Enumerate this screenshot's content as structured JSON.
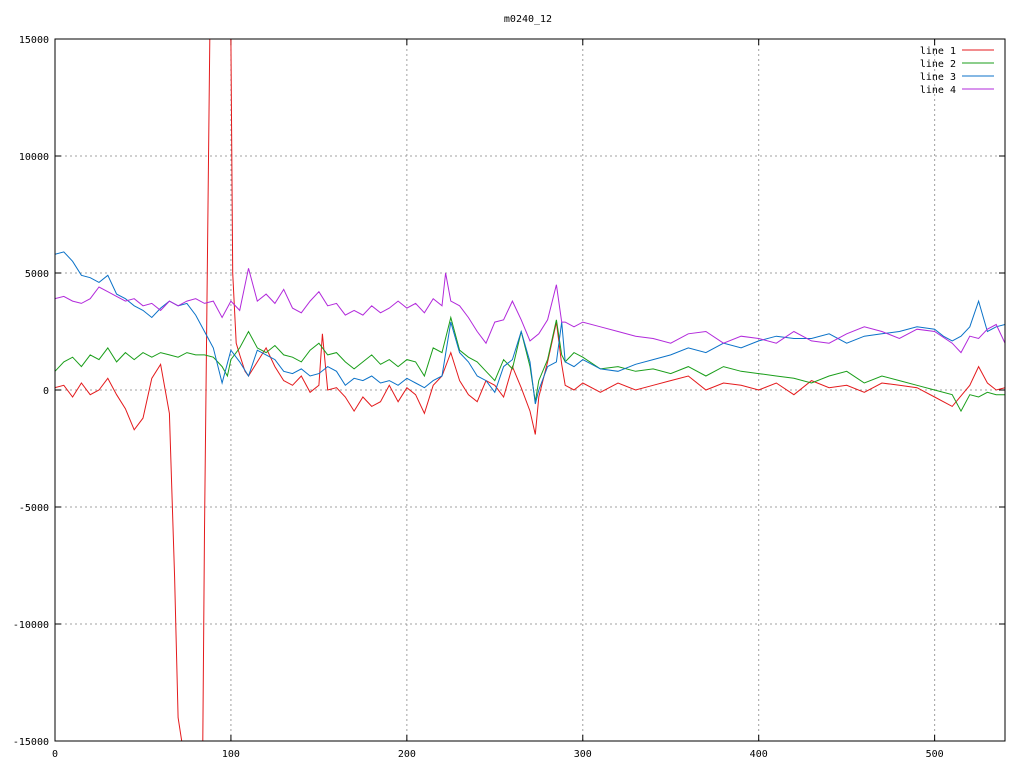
{
  "chart_data": {
    "type": "line",
    "title": "m0240_12",
    "xlabel": "",
    "ylabel": "",
    "xlim": [
      0,
      540
    ],
    "ylim": [
      -15000,
      15000
    ],
    "xticks": [
      0,
      100,
      200,
      300,
      400,
      500
    ],
    "yticks": [
      -15000,
      -10000,
      -5000,
      0,
      5000,
      10000,
      15000
    ],
    "xtick_labels": [
      "0",
      "100",
      "200",
      "300",
      "400",
      "500"
    ],
    "ytick_labels": [
      "-15000",
      "-10000",
      "-5000",
      "0",
      "5000",
      "10000",
      "15000"
    ],
    "grid": true,
    "legend_position": "top-right",
    "series": [
      {
        "name": "line 1",
        "color": "#e41a1c",
        "x": [
          0,
          5,
          10,
          15,
          20,
          25,
          30,
          35,
          40,
          45,
          50,
          55,
          60,
          65,
          68,
          70,
          72,
          75,
          80,
          84,
          85,
          88,
          92,
          95,
          98,
          100,
          101,
          103,
          105,
          108,
          110,
          115,
          120,
          125,
          130,
          135,
          140,
          145,
          150,
          152,
          155,
          160,
          165,
          170,
          175,
          180,
          185,
          190,
          195,
          200,
          205,
          210,
          215,
          220,
          225,
          230,
          235,
          240,
          245,
          250,
          255,
          260,
          265,
          270,
          273,
          275,
          280,
          285,
          288,
          290,
          295,
          300,
          310,
          320,
          330,
          340,
          350,
          360,
          370,
          380,
          390,
          400,
          410,
          420,
          430,
          440,
          450,
          460,
          470,
          480,
          490,
          500,
          510,
          520,
          525,
          530,
          535,
          540
        ],
        "y": [
          100,
          200,
          -300,
          300,
          -200,
          0,
          500,
          -200,
          -800,
          -1700,
          -1200,
          500,
          1100,
          -1000,
          -8000,
          -14000,
          -15000,
          -15000,
          -15000,
          -15000,
          -6000,
          15000,
          15000,
          15000,
          15000,
          15000,
          5000,
          2000,
          1500,
          800,
          600,
          1200,
          1800,
          1000,
          400,
          200,
          600,
          -100,
          200,
          2400,
          0,
          100,
          -300,
          -900,
          -300,
          -700,
          -500,
          200,
          -500,
          100,
          -200,
          -1000,
          200,
          600,
          1600,
          400,
          -200,
          -500,
          400,
          200,
          -300,
          1000,
          100,
          -900,
          -1900,
          -300,
          1200,
          2900,
          1100,
          200,
          0,
          300,
          -100,
          300,
          0,
          200,
          400,
          600,
          0,
          300,
          200,
          0,
          300,
          -200,
          400,
          100,
          200,
          -100,
          300,
          200,
          100,
          -300,
          -700,
          200,
          1000,
          300,
          0,
          100
        ]
      },
      {
        "name": "line 2",
        "color": "#1a9e1a",
        "x": [
          0,
          5,
          10,
          15,
          20,
          25,
          30,
          35,
          40,
          45,
          50,
          55,
          60,
          65,
          70,
          75,
          80,
          85,
          90,
          95,
          98,
          100,
          105,
          110,
          115,
          120,
          125,
          130,
          135,
          140,
          145,
          150,
          155,
          160,
          165,
          170,
          175,
          180,
          185,
          190,
          195,
          200,
          205,
          210,
          215,
          220,
          225,
          230,
          235,
          240,
          245,
          250,
          255,
          260,
          265,
          270,
          273,
          275,
          280,
          285,
          288,
          290,
          295,
          300,
          310,
          320,
          330,
          340,
          350,
          360,
          370,
          380,
          390,
          400,
          410,
          420,
          430,
          440,
          450,
          460,
          470,
          480,
          490,
          500,
          510,
          515,
          520,
          525,
          530,
          535,
          540
        ],
        "y": [
          800,
          1200,
          1400,
          1000,
          1500,
          1300,
          1800,
          1200,
          1600,
          1300,
          1600,
          1400,
          1600,
          1500,
          1400,
          1600,
          1500,
          1500,
          1400,
          1000,
          600,
          1300,
          1800,
          2500,
          1800,
          1600,
          1900,
          1500,
          1400,
          1200,
          1700,
          2000,
          1500,
          1600,
          1200,
          900,
          1200,
          1500,
          1100,
          1300,
          1000,
          1300,
          1200,
          600,
          1800,
          1600,
          3100,
          1700,
          1400,
          1200,
          800,
          400,
          1300,
          900,
          2500,
          1000,
          -500,
          400,
          1300,
          3000,
          1500,
          1200,
          1600,
          1400,
          900,
          1000,
          800,
          900,
          700,
          1000,
          600,
          1000,
          800,
          700,
          600,
          500,
          300,
          600,
          800,
          300,
          600,
          400,
          200,
          0,
          -200,
          -900,
          -200,
          -300,
          -100,
          -200,
          -200
        ]
      },
      {
        "name": "line 3",
        "color": "#0b72c8",
        "x": [
          0,
          5,
          10,
          15,
          20,
          25,
          30,
          35,
          40,
          45,
          50,
          55,
          60,
          65,
          70,
          75,
          80,
          85,
          90,
          95,
          100,
          105,
          110,
          115,
          120,
          125,
          130,
          135,
          140,
          145,
          150,
          155,
          160,
          165,
          170,
          175,
          180,
          185,
          190,
          195,
          200,
          205,
          210,
          215,
          220,
          225,
          230,
          235,
          240,
          245,
          250,
          255,
          260,
          265,
          270,
          273,
          275,
          280,
          285,
          288,
          290,
          295,
          300,
          310,
          320,
          330,
          340,
          350,
          360,
          370,
          380,
          390,
          400,
          410,
          420,
          430,
          440,
          450,
          460,
          470,
          480,
          490,
          500,
          505,
          510,
          515,
          520,
          525,
          530,
          535,
          540
        ],
        "y": [
          5800,
          5900,
          5500,
          4900,
          4800,
          4600,
          4900,
          4100,
          3900,
          3600,
          3400,
          3100,
          3500,
          3800,
          3600,
          3700,
          3200,
          2500,
          1800,
          300,
          1700,
          1200,
          600,
          1700,
          1500,
          1300,
          800,
          700,
          900,
          600,
          700,
          1000,
          800,
          200,
          500,
          400,
          600,
          300,
          400,
          200,
          500,
          300,
          100,
          400,
          600,
          2900,
          1600,
          1200,
          600,
          400,
          -100,
          1000,
          1300,
          2500,
          1200,
          -600,
          0,
          1000,
          1200,
          2900,
          1200,
          1000,
          1300,
          900,
          800,
          1100,
          1300,
          1500,
          1800,
          1600,
          2000,
          1800,
          2100,
          2300,
          2200,
          2200,
          2400,
          2000,
          2300,
          2400,
          2500,
          2700,
          2600,
          2300,
          2100,
          2300,
          2700,
          3800,
          2500,
          2700,
          2800
        ]
      },
      {
        "name": "line 4",
        "color": "#b22adb",
        "x": [
          0,
          5,
          10,
          15,
          20,
          25,
          30,
          35,
          40,
          45,
          50,
          55,
          60,
          65,
          70,
          75,
          80,
          85,
          90,
          95,
          100,
          105,
          110,
          115,
          120,
          125,
          130,
          135,
          140,
          145,
          150,
          155,
          160,
          165,
          170,
          175,
          180,
          185,
          190,
          195,
          200,
          205,
          210,
          215,
          220,
          222,
          225,
          230,
          235,
          240,
          245,
          250,
          255,
          260,
          265,
          270,
          275,
          280,
          285,
          288,
          290,
          295,
          300,
          310,
          320,
          330,
          340,
          350,
          360,
          370,
          380,
          390,
          400,
          410,
          420,
          430,
          440,
          450,
          460,
          470,
          480,
          490,
          500,
          510,
          515,
          520,
          525,
          530,
          535,
          540
        ],
        "y": [
          3900,
          4000,
          3800,
          3700,
          3900,
          4400,
          4200,
          4000,
          3800,
          3900,
          3600,
          3700,
          3400,
          3800,
          3600,
          3800,
          3900,
          3700,
          3800,
          3100,
          3800,
          3400,
          5200,
          3800,
          4100,
          3700,
          4300,
          3500,
          3300,
          3800,
          4200,
          3600,
          3700,
          3200,
          3400,
          3200,
          3600,
          3300,
          3500,
          3800,
          3500,
          3700,
          3300,
          3900,
          3600,
          5000,
          3800,
          3600,
          3100,
          2500,
          2000,
          2900,
          3000,
          3800,
          3000,
          2100,
          2400,
          3000,
          4500,
          2900,
          2900,
          2700,
          2900,
          2700,
          2500,
          2300,
          2200,
          2000,
          2400,
          2500,
          2000,
          2300,
          2200,
          2000,
          2500,
          2100,
          2000,
          2400,
          2700,
          2500,
          2200,
          2600,
          2500,
          2000,
          1600,
          2300,
          2200,
          2600,
          2800,
          2000
        ]
      }
    ]
  }
}
